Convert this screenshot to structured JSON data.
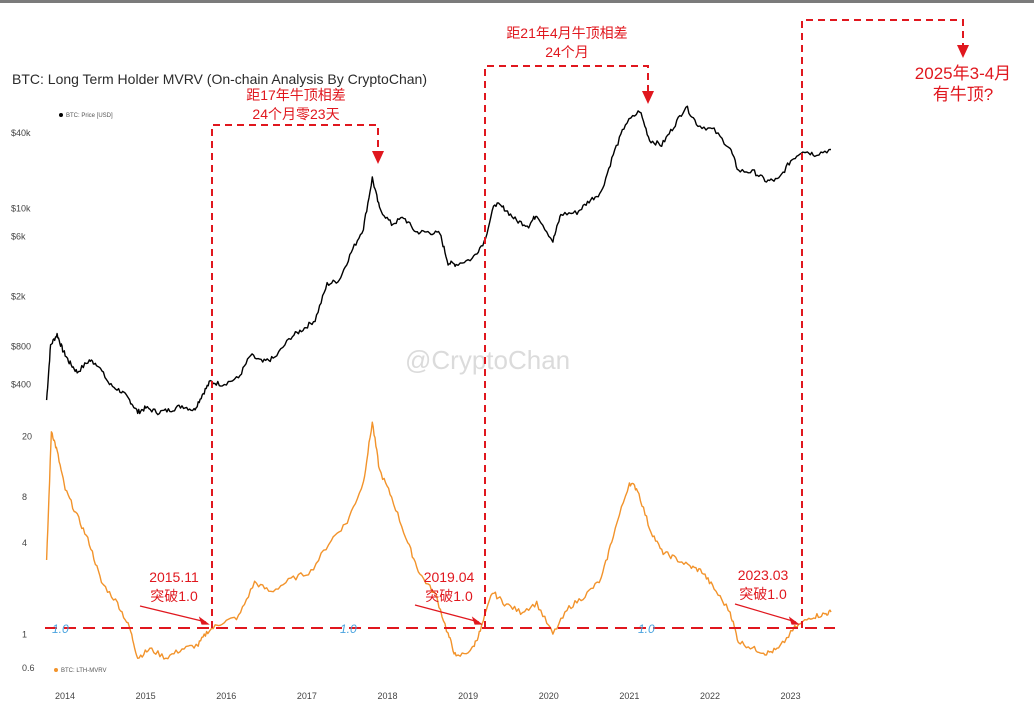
{
  "chart_data": [
    {
      "type": "line",
      "title": "BTC: Long Term Holder MVRV (On-chain Analysis By CryptoChan)",
      "watermark": "@CryptoChan",
      "yscale": "log",
      "ylim": [
        250,
        80000
      ],
      "xlim": [
        2013.9,
        2023.7
      ],
      "yticks": [
        {
          "v": 40000,
          "label": "$40k"
        },
        {
          "v": 10000,
          "label": "$10k"
        },
        {
          "v": 6000,
          "label": "$6k"
        },
        {
          "v": 2000,
          "label": "$2k"
        },
        {
          "v": 800,
          "label": "$800"
        },
        {
          "v": 400,
          "label": "$400"
        }
      ],
      "legend": "BTC: Price [USD]",
      "legend_position": "top-left",
      "series": [
        {
          "name": "BTC: Price [USD]",
          "color": "#000000",
          "points": [
            [
              2013.92,
              300
            ],
            [
              2013.97,
              820
            ],
            [
              2014.05,
              1000
            ],
            [
              2014.12,
              750
            ],
            [
              2014.2,
              600
            ],
            [
              2014.3,
              500
            ],
            [
              2014.45,
              620
            ],
            [
              2014.55,
              580
            ],
            [
              2014.7,
              400
            ],
            [
              2014.85,
              350
            ],
            [
              2014.95,
              300
            ],
            [
              2015.05,
              240
            ],
            [
              2015.15,
              260
            ],
            [
              2015.3,
              240
            ],
            [
              2015.45,
              250
            ],
            [
              2015.6,
              270
            ],
            [
              2015.75,
              250
            ],
            [
              2015.85,
              330
            ],
            [
              2015.95,
              420
            ],
            [
              2016.1,
              400
            ],
            [
              2016.3,
              450
            ],
            [
              2016.45,
              680
            ],
            [
              2016.6,
              600
            ],
            [
              2016.75,
              650
            ],
            [
              2016.95,
              950
            ],
            [
              2017.1,
              1100
            ],
            [
              2017.25,
              1300
            ],
            [
              2017.4,
              2500
            ],
            [
              2017.55,
              2700
            ],
            [
              2017.7,
              4500
            ],
            [
              2017.85,
              7000
            ],
            [
              2017.96,
              17500
            ],
            [
              2018.05,
              10000
            ],
            [
              2018.2,
              7500
            ],
            [
              2018.35,
              8500
            ],
            [
              2018.5,
              6500
            ],
            [
              2018.65,
              6500
            ],
            [
              2018.8,
              6300
            ],
            [
              2018.9,
              3700
            ],
            [
              2019.0,
              3600
            ],
            [
              2019.2,
              4000
            ],
            [
              2019.35,
              5500
            ],
            [
              2019.48,
              11000
            ],
            [
              2019.6,
              10000
            ],
            [
              2019.75,
              8000
            ],
            [
              2019.9,
              7300
            ],
            [
              2020.0,
              9000
            ],
            [
              2020.2,
              5500
            ],
            [
              2020.3,
              9000
            ],
            [
              2020.5,
              9300
            ],
            [
              2020.65,
              11500
            ],
            [
              2020.8,
              13500
            ],
            [
              2020.95,
              27000
            ],
            [
              2021.1,
              47000
            ],
            [
              2021.28,
              60000
            ],
            [
              2021.4,
              35000
            ],
            [
              2021.55,
              32000
            ],
            [
              2021.7,
              45000
            ],
            [
              2021.85,
              65000
            ],
            [
              2022.0,
              46000
            ],
            [
              2022.2,
              42000
            ],
            [
              2022.4,
              30000
            ],
            [
              2022.5,
              20000
            ],
            [
              2022.7,
              19500
            ],
            [
              2022.85,
              16500
            ],
            [
              2023.0,
              17000
            ],
            [
              2023.15,
              24000
            ],
            [
              2023.3,
              29000
            ],
            [
              2023.45,
              27000
            ],
            [
              2023.65,
              29500
            ]
          ]
        }
      ]
    },
    {
      "type": "line",
      "yscale": "log",
      "ylim": [
        0.5,
        30
      ],
      "xlim": [
        2013.9,
        2023.7
      ],
      "yticks": [
        {
          "v": 20,
          "label": "20"
        },
        {
          "v": 8,
          "label": "8"
        },
        {
          "v": 4,
          "label": "4"
        },
        {
          "v": 1,
          "label": "1"
        },
        {
          "v": 0.6,
          "label": "0.6"
        }
      ],
      "xticks": [
        "2014",
        "2015",
        "2016",
        "2017",
        "2018",
        "2019",
        "2020",
        "2021",
        "2022",
        "2023"
      ],
      "legend": "BTC: LTH-MVRV",
      "legend_position": "bottom-left",
      "reference_line": {
        "value": 1.0,
        "label": "1.0"
      },
      "series": [
        {
          "name": "BTC: LTH-MVRV",
          "color": "#f2932b",
          "points": [
            [
              2013.92,
              3
            ],
            [
              2013.98,
              22
            ],
            [
              2014.05,
              16
            ],
            [
              2014.15,
              9
            ],
            [
              2014.3,
              6
            ],
            [
              2014.45,
              4
            ],
            [
              2014.6,
              2.2
            ],
            [
              2014.8,
              1.6
            ],
            [
              2014.95,
              1.1
            ],
            [
              2015.05,
              0.7
            ],
            [
              2015.2,
              0.8
            ],
            [
              2015.4,
              0.7
            ],
            [
              2015.6,
              0.8
            ],
            [
              2015.8,
              0.85
            ],
            [
              2015.92,
              1.05
            ],
            [
              2016.1,
              1.2
            ],
            [
              2016.3,
              1.3
            ],
            [
              2016.5,
              2.2
            ],
            [
              2016.7,
              1.9
            ],
            [
              2016.95,
              2.3
            ],
            [
              2017.2,
              2.6
            ],
            [
              2017.45,
              4.2
            ],
            [
              2017.65,
              5.5
            ],
            [
              2017.85,
              10
            ],
            [
              2017.96,
              25
            ],
            [
              2018.05,
              12
            ],
            [
              2018.2,
              8
            ],
            [
              2018.4,
              4
            ],
            [
              2018.55,
              2.5
            ],
            [
              2018.75,
              1.8
            ],
            [
              2018.9,
              1.0
            ],
            [
              2019.0,
              0.7
            ],
            [
              2019.2,
              0.8
            ],
            [
              2019.3,
              1.05
            ],
            [
              2019.45,
              1.9
            ],
            [
              2019.6,
              1.6
            ],
            [
              2019.8,
              1.4
            ],
            [
              2020.0,
              1.6
            ],
            [
              2020.2,
              1.0
            ],
            [
              2020.4,
              1.5
            ],
            [
              2020.6,
              1.8
            ],
            [
              2020.8,
              2.3
            ],
            [
              2020.95,
              4.5
            ],
            [
              2021.15,
              10
            ],
            [
              2021.25,
              9
            ],
            [
              2021.4,
              5
            ],
            [
              2021.55,
              3.5
            ],
            [
              2021.7,
              3.2
            ],
            [
              2021.9,
              2.8
            ],
            [
              2022.05,
              2.6
            ],
            [
              2022.2,
              2.0
            ],
            [
              2022.4,
              1.4
            ],
            [
              2022.5,
              0.9
            ],
            [
              2022.7,
              0.8
            ],
            [
              2022.85,
              0.75
            ],
            [
              2023.0,
              0.8
            ],
            [
              2023.2,
              1.1
            ],
            [
              2023.4,
              1.3
            ],
            [
              2023.55,
              1.35
            ],
            [
              2023.65,
              1.4
            ]
          ]
        }
      ]
    }
  ],
  "annotations": {
    "top_2017": {
      "line1": "距17年牛顶相差",
      "line2": "24个月零23天"
    },
    "top_2021": {
      "line1": "距21年4月牛顶相差",
      "line2": "24个月"
    },
    "top_2025": {
      "line1": "2025年3-4月",
      "line2": "有牛顶?"
    },
    "break_2015": {
      "line1": "2015.11",
      "line2": "突破1.0"
    },
    "break_2019": {
      "line1": "2019.04",
      "line2": "突破1.0"
    },
    "break_2023": {
      "line1": "2023.03",
      "line2": "突破1.0"
    }
  },
  "colors": {
    "annotation": "#e0171e",
    "reference": "#e0171e",
    "price": "#000000",
    "mvrv": "#f2932b",
    "one_label": "#4aa3df"
  }
}
